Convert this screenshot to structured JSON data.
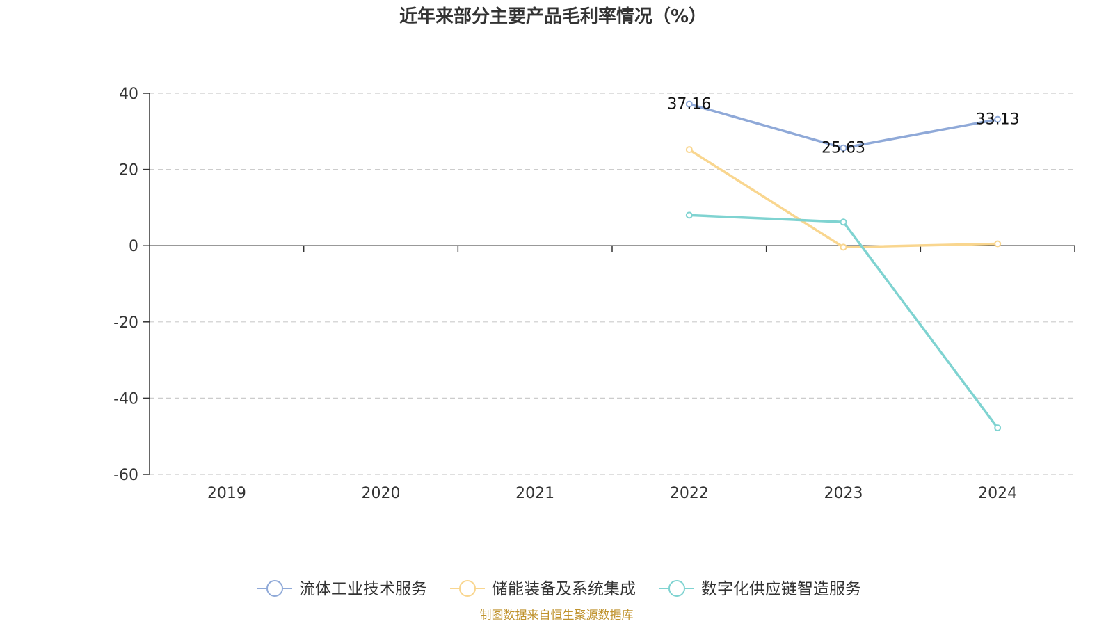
{
  "chart_data": {
    "type": "line",
    "title": "近年来部分主要产品毛利率情况（%）",
    "categories": [
      "2019",
      "2020",
      "2021",
      "2022",
      "2023",
      "2024"
    ],
    "ylim": [
      -60,
      40
    ],
    "yticks": [
      40,
      20,
      0,
      -20,
      -40,
      -60
    ],
    "ytick_labels": [
      "40",
      "20",
      "0",
      "-20",
      "-40",
      "-60"
    ],
    "grid": true,
    "legend_position": "bottom",
    "series": [
      {
        "name": "流体工业技术服务",
        "color": "#8fa9d8",
        "values": [
          null,
          null,
          null,
          37.16,
          25.63,
          33.13
        ],
        "labels": [
          null,
          null,
          null,
          "37.16",
          "25.63",
          "33.13"
        ]
      },
      {
        "name": "储能装备及系统集成",
        "color": "#f9d68f",
        "values": [
          null,
          null,
          null,
          25.2,
          -0.4,
          0.5
        ],
        "labels": [
          null,
          null,
          null,
          null,
          null,
          null
        ]
      },
      {
        "name": "数字化供应链智造服务",
        "color": "#7fd3d1",
        "values": [
          null,
          null,
          null,
          8.0,
          6.2,
          -47.8
        ],
        "labels": [
          null,
          null,
          null,
          null,
          null,
          null
        ]
      }
    ]
  },
  "source": {
    "text": "制图数据来自恒生聚源数据库",
    "color": "#c0932e"
  }
}
